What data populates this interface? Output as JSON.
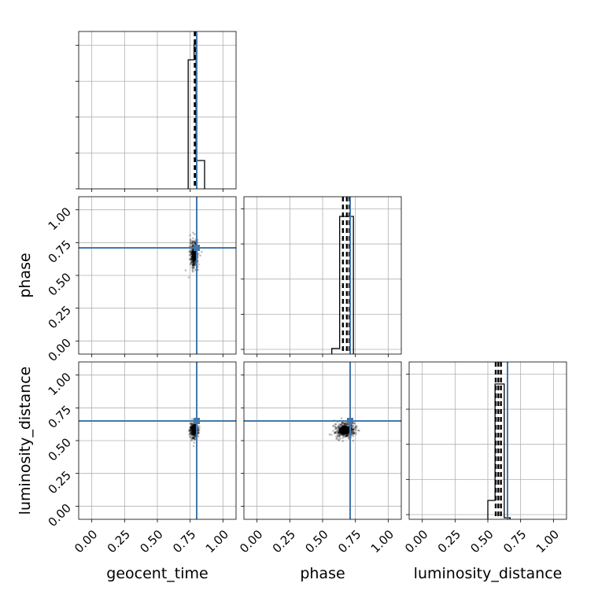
{
  "chart_data": {
    "type": "corner",
    "parameters": [
      "geocent_time",
      "phase",
      "luminosity_distance"
    ],
    "axis_range": [
      -0.1,
      1.1
    ],
    "ticks": [
      0.0,
      0.25,
      0.5,
      0.75,
      1.0
    ],
    "tick_labels": [
      "0.00",
      "0.25",
      "0.50",
      "0.75",
      "1.00"
    ],
    "grid": true,
    "colors": {
      "truth": "#4477aa",
      "hist": "#000000",
      "quantile": "#000000"
    },
    "truths": {
      "geocent_time": 0.8,
      "phase": 0.71,
      "luminosity_distance": 0.65
    },
    "histograms": {
      "geocent_time": {
        "bin_edges": [
          0.735,
          0.78,
          0.795,
          0.86
        ],
        "counts": [
          0.82,
          0.92,
          0.18
        ],
        "quantiles": [
          0.785,
          0.792,
          0.798
        ],
        "ymax": 1.0
      },
      "phase": {
        "bin_edges": [
          0.57,
          0.63,
          0.675,
          0.735
        ],
        "counts": [
          0.04,
          0.98,
          0.98
        ],
        "quantiles": [
          0.655,
          0.685,
          0.705
        ],
        "ymax": 1.12
      },
      "luminosity_distance": {
        "bin_edges": [
          0.5,
          0.555,
          0.61,
          0.625,
          0.67
        ],
        "counts": [
          0.12,
          0.86,
          0.86,
          0.01
        ],
        "quantiles": [
          0.56,
          0.58,
          0.6
        ],
        "ymax": 1.0
      }
    },
    "scatter": [
      {
        "x": "geocent_time",
        "y": "phase",
        "center": [
          0.78,
          0.66
        ],
        "spread": [
          0.015,
          0.05
        ]
      },
      {
        "x": "geocent_time",
        "y": "luminosity_distance",
        "center": [
          0.78,
          0.58
        ],
        "spread": [
          0.015,
          0.03
        ]
      },
      {
        "x": "phase",
        "y": "luminosity_distance",
        "center": [
          0.67,
          0.58
        ],
        "spread": [
          0.04,
          0.03
        ]
      }
    ]
  }
}
